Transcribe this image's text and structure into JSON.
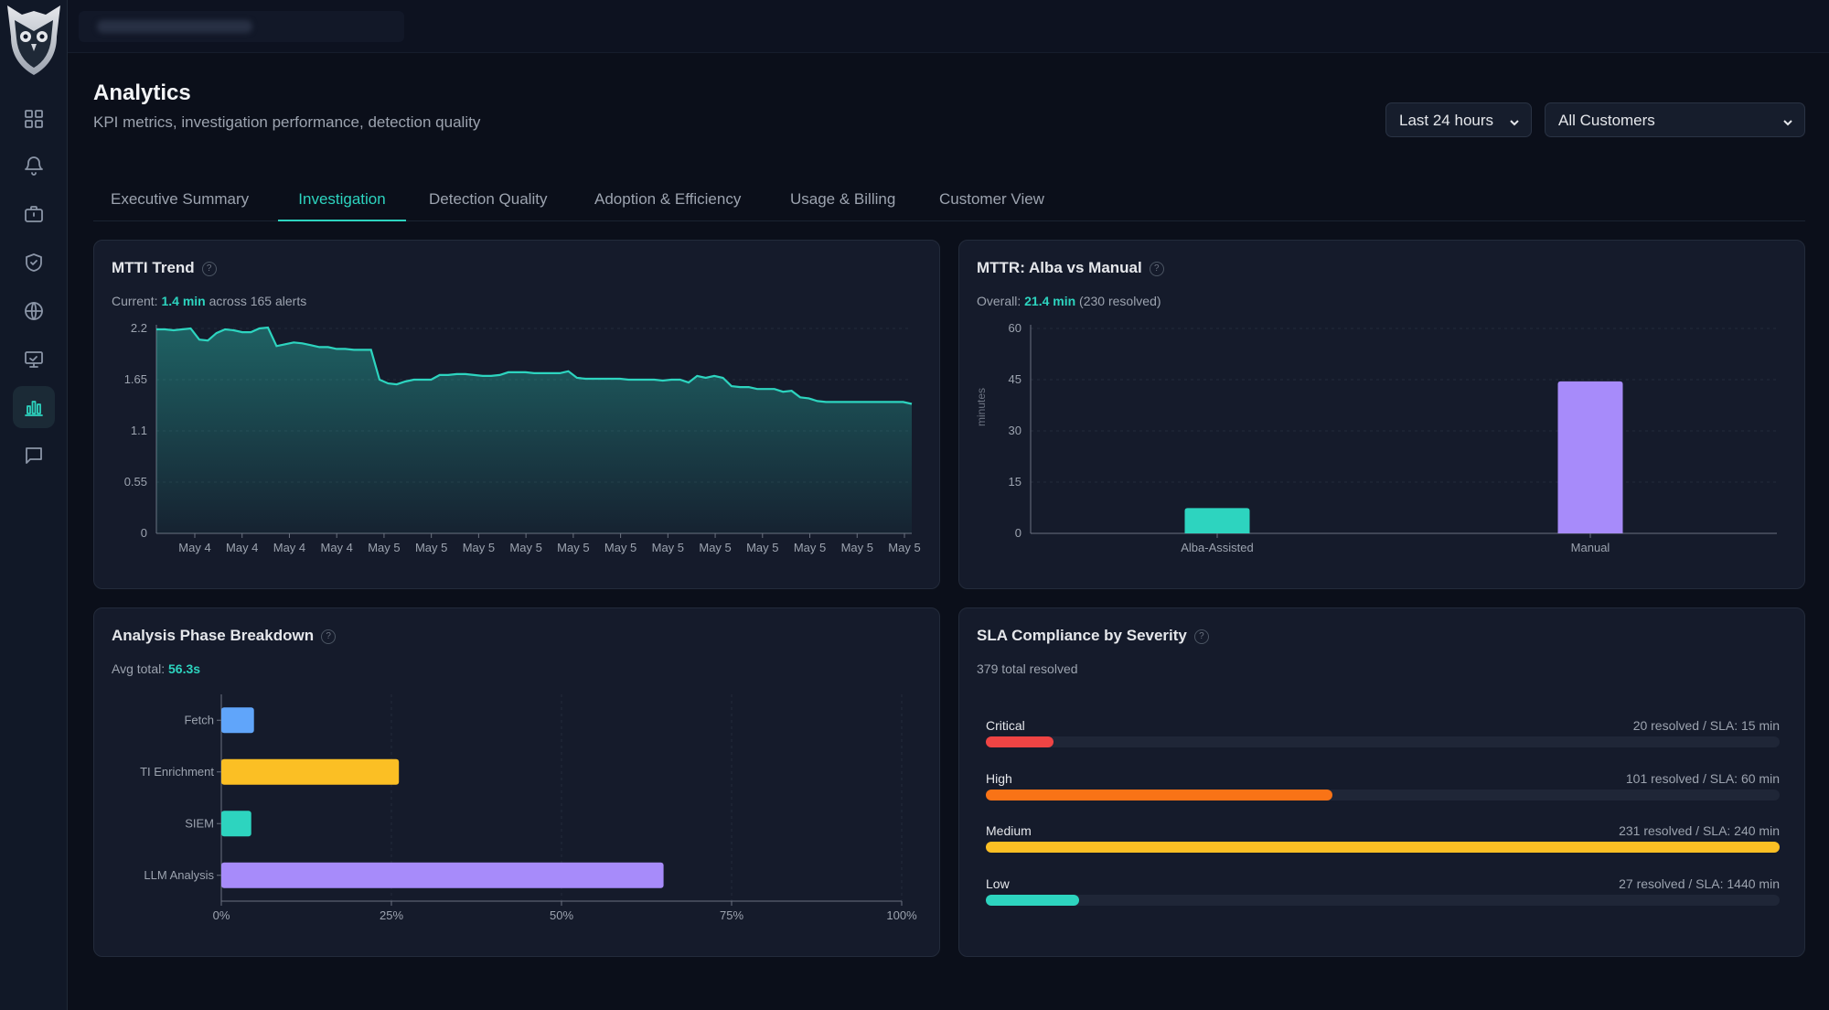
{
  "page": {
    "title": "Analytics",
    "subtitle": "KPI metrics, investigation performance, detection quality"
  },
  "filters": {
    "time_range": "Last 24 hours",
    "customer": "All Customers"
  },
  "sidebar": {
    "items": [
      {
        "name": "dashboard",
        "icon": "grid-icon"
      },
      {
        "name": "alerts",
        "icon": "bell-icon"
      },
      {
        "name": "cases",
        "icon": "briefcase-icon"
      },
      {
        "name": "detections",
        "icon": "shield-icon"
      },
      {
        "name": "network",
        "icon": "globe-icon"
      },
      {
        "name": "monitoring",
        "icon": "monitor-icon"
      },
      {
        "name": "analytics",
        "icon": "bar-chart-icon",
        "active": true
      },
      {
        "name": "chat",
        "icon": "message-icon"
      }
    ]
  },
  "tabs": [
    {
      "label": "Executive Summary"
    },
    {
      "label": "Investigation",
      "active": true
    },
    {
      "label": "Detection Quality"
    },
    {
      "label": "Adoption & Efficiency"
    },
    {
      "label": "Usage & Billing"
    },
    {
      "label": "Customer View"
    }
  ],
  "colors": {
    "accent": "#2dd4bf",
    "purple": "#a78bfa",
    "blue": "#60a5fa",
    "yellow": "#fbbf24",
    "red": "#ef4444",
    "orange": "#f97316"
  },
  "mtti": {
    "title": "MTTI Trend",
    "current_prefix": "Current:",
    "current_value": "1.4 min",
    "current_suffix": "across 165 alerts"
  },
  "mttr": {
    "title": "MTTR: Alba vs Manual",
    "overall_prefix": "Overall:",
    "overall_value": "21.4 min",
    "overall_suffix": "(230 resolved)"
  },
  "phase": {
    "title": "Analysis Phase Breakdown",
    "avg_prefix": "Avg total:",
    "avg_value": "56.3s"
  },
  "sla": {
    "title": "SLA Compliance by Severity",
    "total": "379 total resolved",
    "rows": [
      {
        "severity": "Critical",
        "info": "20 resolved / SLA: 15 min",
        "fraction": 0.085,
        "color": "#ef4444"
      },
      {
        "severity": "High",
        "info": "101 resolved / SLA: 60 min",
        "fraction": 0.437,
        "color": "#f97316"
      },
      {
        "severity": "Medium",
        "info": "231 resolved / SLA: 240 min",
        "fraction": 1.0,
        "color": "#fbbf24"
      },
      {
        "severity": "Low",
        "info": "27 resolved / SLA: 1440 min",
        "fraction": 0.117,
        "color": "#2dd4bf"
      }
    ]
  },
  "chart_data": [
    {
      "id": "mtti",
      "type": "area",
      "ylim": [
        0,
        2.2
      ],
      "yticks": [
        "0",
        "0.55",
        "1.1",
        "1.65",
        "2.2"
      ],
      "xticks": [
        "May 4",
        "May 4",
        "May 4",
        "May 4",
        "May 5",
        "May 5",
        "May 5",
        "May 5",
        "May 5",
        "May 5",
        "May 5",
        "May 5",
        "May 5",
        "May 5",
        "May 5",
        "May 5"
      ],
      "values": [
        2.19,
        2.19,
        2.18,
        2.19,
        2.2,
        2.08,
        2.07,
        2.15,
        2.19,
        2.18,
        2.16,
        2.16,
        2.2,
        2.21,
        2.01,
        2.03,
        2.05,
        2.04,
        2.02,
        2.0,
        2.0,
        1.98,
        1.98,
        1.97,
        1.97,
        1.97,
        1.65,
        1.61,
        1.6,
        1.63,
        1.65,
        1.65,
        1.65,
        1.7,
        1.7,
        1.71,
        1.71,
        1.7,
        1.69,
        1.69,
        1.7,
        1.73,
        1.73,
        1.73,
        1.72,
        1.72,
        1.72,
        1.72,
        1.74,
        1.67,
        1.66,
        1.66,
        1.66,
        1.66,
        1.66,
        1.65,
        1.65,
        1.65,
        1.65,
        1.64,
        1.65,
        1.65,
        1.62,
        1.69,
        1.67,
        1.69,
        1.67,
        1.58,
        1.57,
        1.57,
        1.55,
        1.55,
        1.55,
        1.52,
        1.53,
        1.46,
        1.45,
        1.42,
        1.41,
        1.41,
        1.41,
        1.41,
        1.41,
        1.41,
        1.41,
        1.41,
        1.41,
        1.41,
        1.39
      ]
    },
    {
      "id": "mttr",
      "type": "bar",
      "ylabel": "minutes",
      "ylim": [
        0,
        60
      ],
      "yticks": [
        "0",
        "15",
        "30",
        "45",
        "60"
      ],
      "categories": [
        "Alba-Assisted",
        "Manual"
      ],
      "values": [
        7.4,
        44.5
      ]
    },
    {
      "id": "phase",
      "type": "bar",
      "orientation": "horizontal",
      "xlim": [
        0,
        100
      ],
      "xticks": [
        "0%",
        "25%",
        "50%",
        "75%",
        "100%"
      ],
      "categories": [
        "Fetch",
        "TI Enrichment",
        "SIEM",
        "LLM Analysis"
      ],
      "values": [
        4.8,
        26.1,
        4.4,
        65.0
      ],
      "colors": [
        "#60a5fa",
        "#fbbf24",
        "#2dd4bf",
        "#a78bfa"
      ]
    }
  ]
}
